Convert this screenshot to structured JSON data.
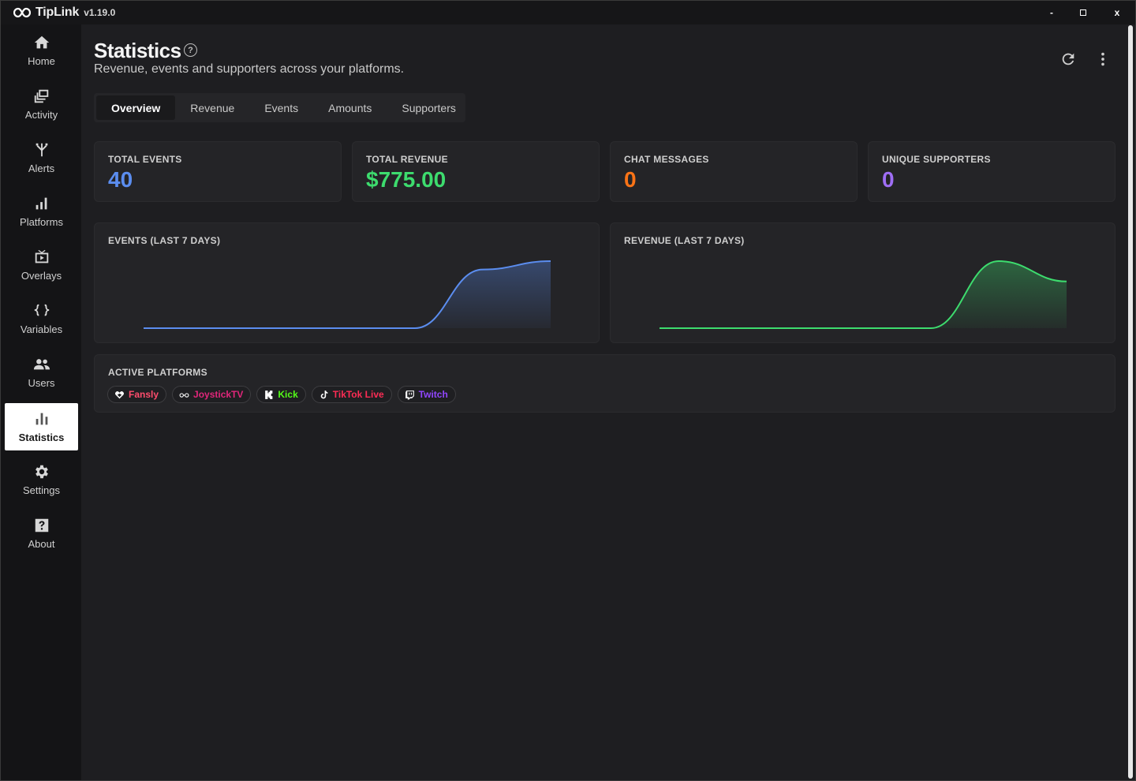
{
  "app": {
    "name": "TipLink",
    "version": "v1.19.0"
  },
  "window_controls": {
    "minimize": "-",
    "maximize": "□",
    "close": "x"
  },
  "sidebar": {
    "items": [
      {
        "label": "Home",
        "icon": "home-icon"
      },
      {
        "label": "Activity",
        "icon": "activity-icon"
      },
      {
        "label": "Alerts",
        "icon": "alerts-icon"
      },
      {
        "label": "Platforms",
        "icon": "platforms-icon"
      },
      {
        "label": "Overlays",
        "icon": "overlays-icon"
      },
      {
        "label": "Variables",
        "icon": "variables-icon"
      },
      {
        "label": "Users",
        "icon": "users-icon"
      },
      {
        "label": "Statistics",
        "icon": "statistics-icon",
        "active": true
      },
      {
        "label": "Settings",
        "icon": "settings-icon"
      },
      {
        "label": "About",
        "icon": "about-icon"
      }
    ]
  },
  "header": {
    "title": "Statistics",
    "help": "?",
    "subtitle": "Revenue, events and supporters across your platforms."
  },
  "tabs": [
    {
      "label": "Overview",
      "active": true
    },
    {
      "label": "Revenue"
    },
    {
      "label": "Events"
    },
    {
      "label": "Amounts"
    },
    {
      "label": "Supporters"
    }
  ],
  "stats": [
    {
      "label": "TOTAL EVENTS",
      "value": "40",
      "color": "#5b8def"
    },
    {
      "label": "TOTAL REVENUE",
      "value": "$775.00",
      "color": "#3ddc6e"
    },
    {
      "label": "CHAT MESSAGES",
      "value": "0",
      "color": "#f97316"
    },
    {
      "label": "UNIQUE SUPPORTERS",
      "value": "0",
      "color": "#9f6ef5"
    }
  ],
  "charts": {
    "events": {
      "label": "EVENTS (LAST 7 DAYS)",
      "color": "#5b8def"
    },
    "revenue": {
      "label": "REVENUE (LAST 7 DAYS)",
      "color": "#3ddc6e"
    }
  },
  "chart_data": [
    {
      "type": "area",
      "title": "EVENTS (LAST 7 DAYS)",
      "xlabel": "",
      "ylabel": "",
      "series": [
        {
          "values": [
            0,
            0,
            0,
            0,
            0,
            35,
            40
          ]
        }
      ]
    },
    {
      "type": "area",
      "title": "REVENUE (LAST 7 DAYS)",
      "xlabel": "",
      "ylabel": "",
      "series": [
        {
          "values": [
            0,
            0,
            0,
            0,
            0,
            775,
            540
          ]
        }
      ]
    }
  ],
  "active_platforms": {
    "label": "ACTIVE PLATFORMS",
    "items": [
      {
        "label": "Fansly",
        "icon": "fansly-icon",
        "color": "#ff4d6d"
      },
      {
        "label": "JoystickTV",
        "icon": "joysticktv-icon",
        "color": "#e0267a"
      },
      {
        "label": "Kick",
        "icon": "kick-icon",
        "color": "#53fc18"
      },
      {
        "label": "TikTok Live",
        "icon": "tiktok-icon",
        "color": "#fe2c55"
      },
      {
        "label": "Twitch",
        "icon": "twitch-icon",
        "color": "#9146ff"
      }
    ]
  }
}
